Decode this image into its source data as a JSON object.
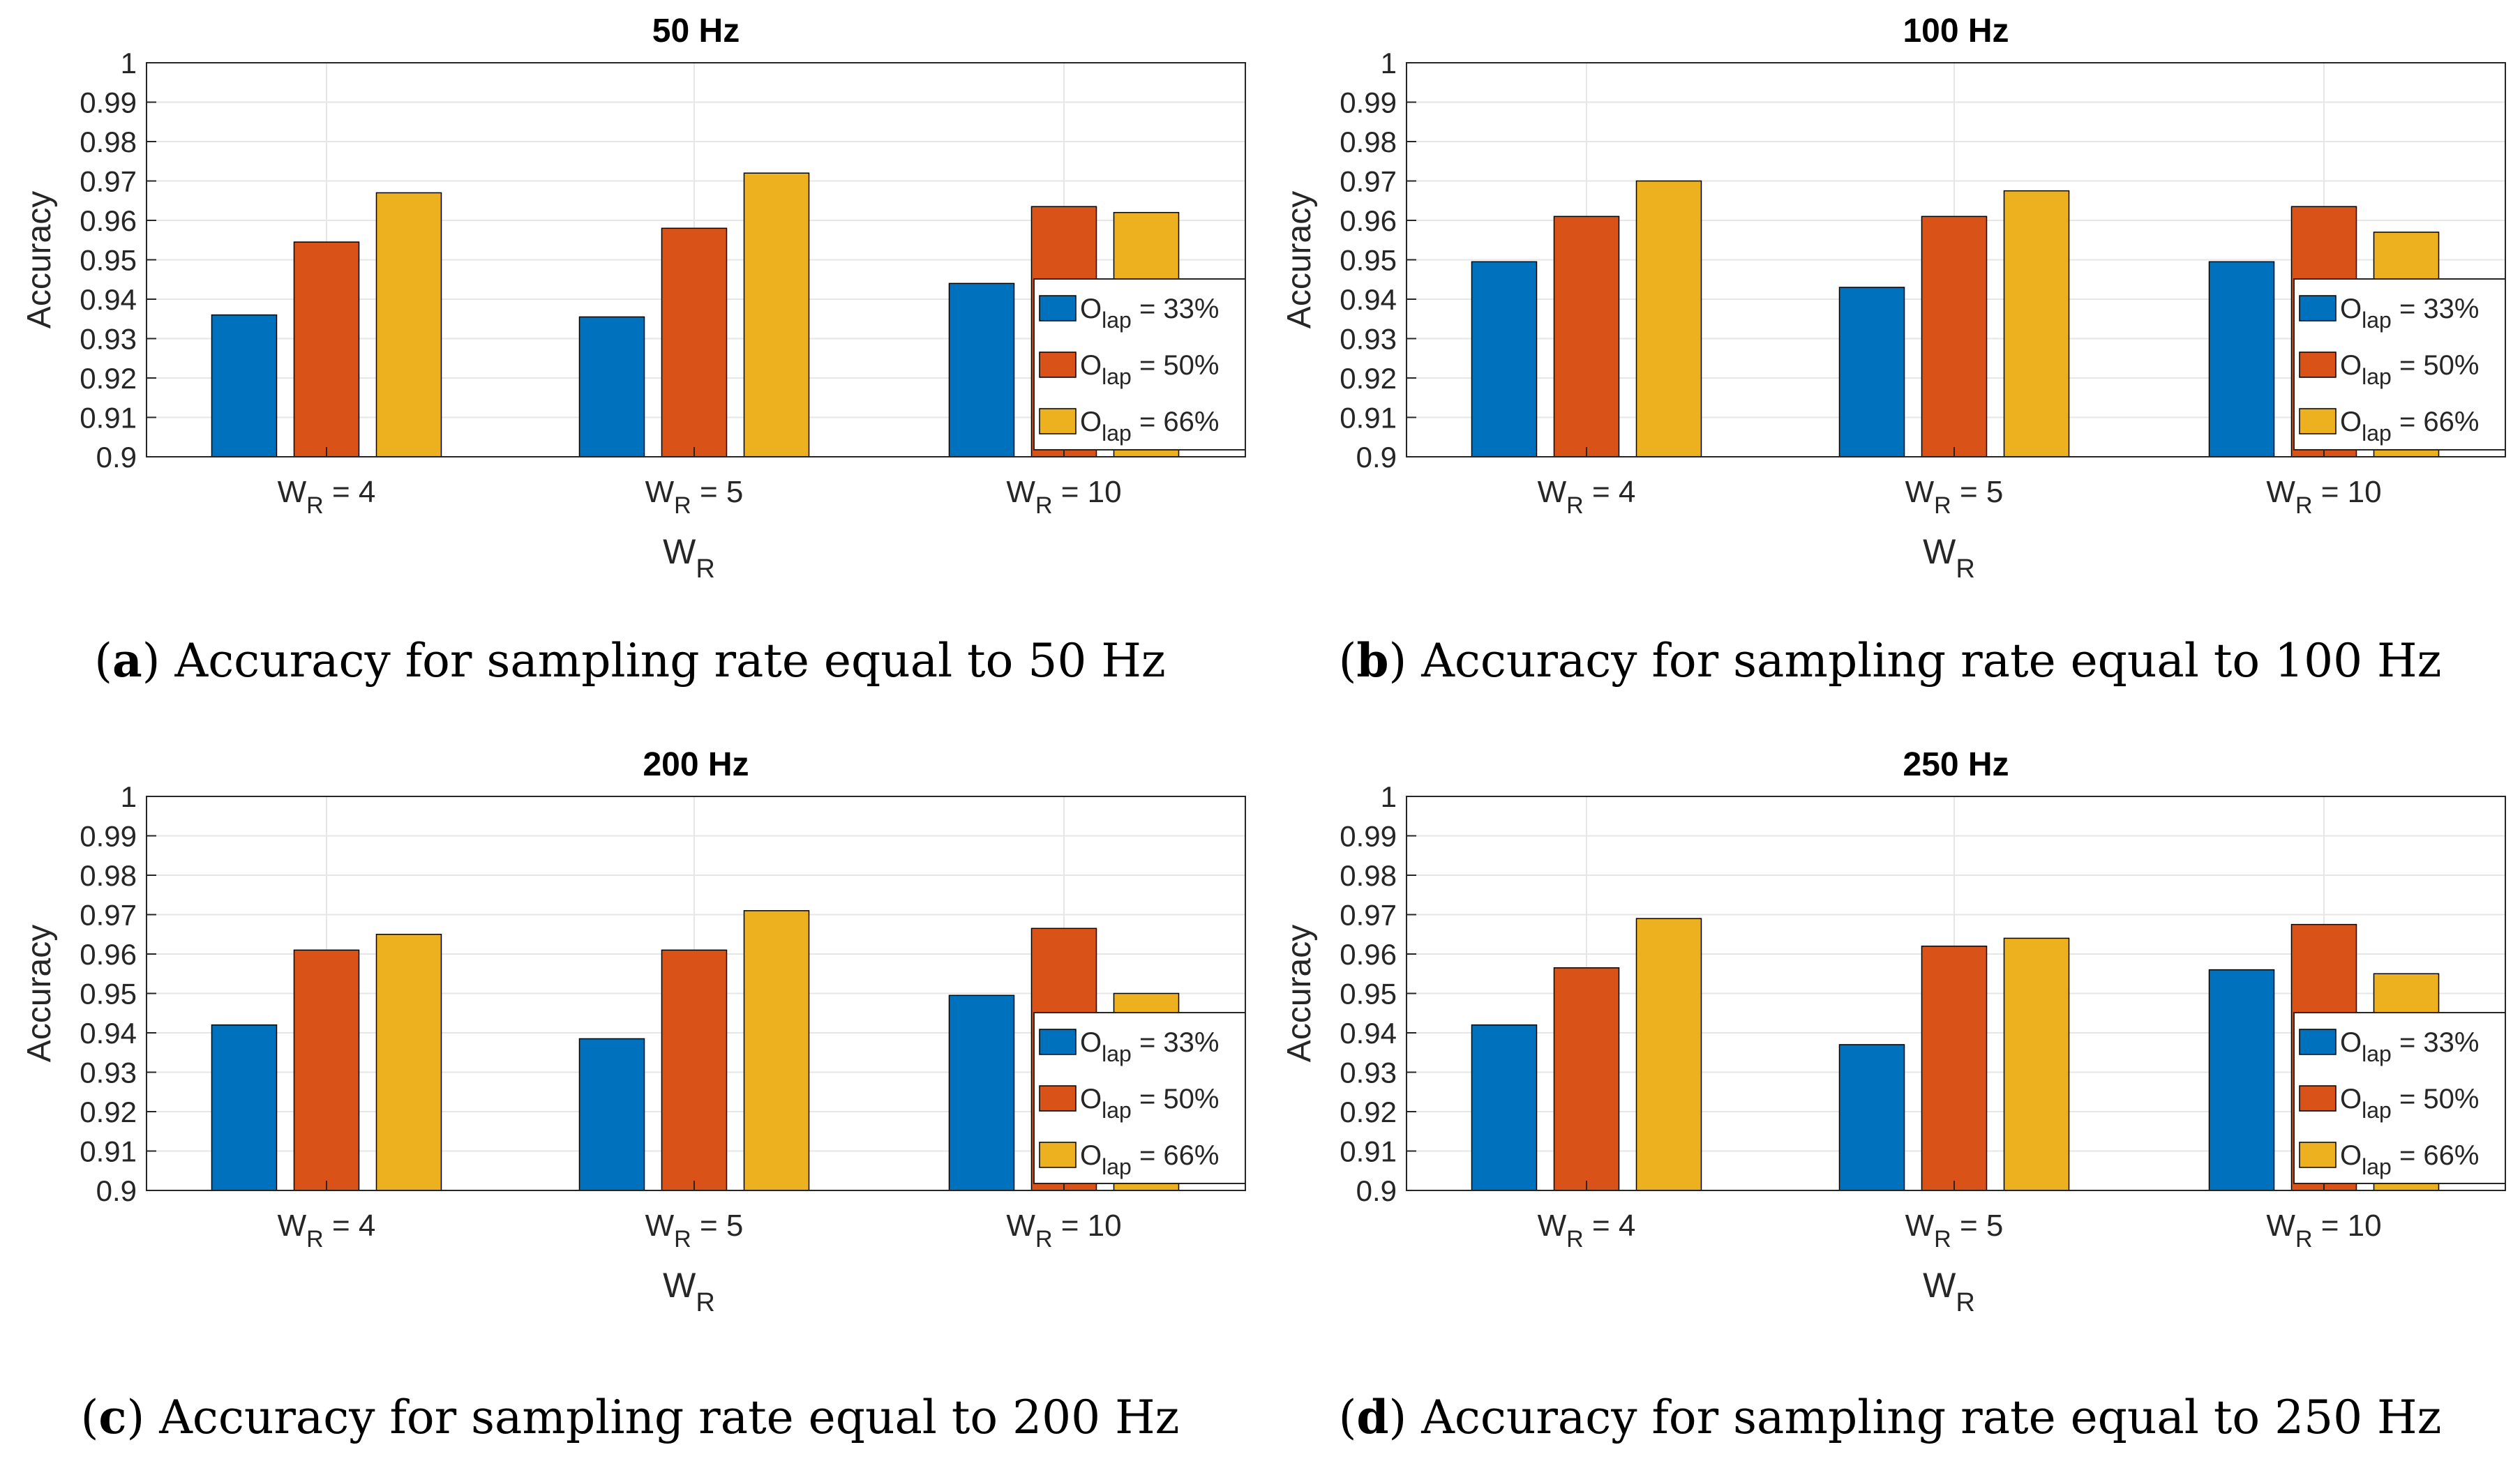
{
  "figure": {
    "y_axis_label": "Accuracy",
    "x_axis_label": "W",
    "x_axis_label_sub": "R",
    "legend_prefix": "O",
    "legend_sub": "lap"
  },
  "colors": {
    "series": [
      "#0072BD",
      "#D95319",
      "#EDB120"
    ]
  },
  "chart_data": [
    {
      "id": "a",
      "type": "bar",
      "title": "50 Hz",
      "caption_letter": "a",
      "caption_text": "Accuracy for sampling rate equal to 50 Hz",
      "xlabel": "W_R",
      "ylabel": "Accuracy",
      "ylim": [
        0.9,
        1.0
      ],
      "yticks": [
        "0.9",
        "0.91",
        "0.92",
        "0.93",
        "0.94",
        "0.95",
        "0.96",
        "0.97",
        "0.98",
        "0.99",
        "1"
      ],
      "categories": [
        "W_R = 4",
        "W_R = 5",
        "W_R = 10"
      ],
      "category_parts": [
        {
          "main": "W",
          "sub": "R",
          "rest": " = 4"
        },
        {
          "main": "W",
          "sub": "R",
          "rest": " = 5"
        },
        {
          "main": "W",
          "sub": "R",
          "rest": " = 10"
        }
      ],
      "legend_location": "east",
      "series": [
        {
          "name": "O_lap = 33%",
          "suffix": " = 33%",
          "values": [
            0.936,
            0.9355,
            0.944
          ]
        },
        {
          "name": "O_lap = 50%",
          "suffix": " = 50%",
          "values": [
            0.9545,
            0.958,
            0.9635
          ]
        },
        {
          "name": "O_lap = 66%",
          "suffix": " = 66%",
          "values": [
            0.967,
            0.972,
            0.962
          ]
        }
      ]
    },
    {
      "id": "b",
      "type": "bar",
      "title": "100 Hz",
      "caption_letter": "b",
      "caption_text": "Accuracy for sampling rate equal to 100 Hz",
      "xlabel": "W_R",
      "ylabel": "Accuracy",
      "ylim": [
        0.9,
        1.0
      ],
      "yticks": [
        "0.9",
        "0.91",
        "0.92",
        "0.93",
        "0.94",
        "0.95",
        "0.96",
        "0.97",
        "0.98",
        "0.99",
        "1"
      ],
      "categories": [
        "W_R = 4",
        "W_R = 5",
        "W_R = 10"
      ],
      "category_parts": [
        {
          "main": "W",
          "sub": "R",
          "rest": " = 4"
        },
        {
          "main": "W",
          "sub": "R",
          "rest": " = 5"
        },
        {
          "main": "W",
          "sub": "R",
          "rest": " = 10"
        }
      ],
      "legend_location": "east",
      "series": [
        {
          "name": "O_lap = 33%",
          "suffix": " = 33%",
          "values": [
            0.9495,
            0.943,
            0.9495
          ]
        },
        {
          "name": "O_lap = 50%",
          "suffix": " = 50%",
          "values": [
            0.961,
            0.961,
            0.9635
          ]
        },
        {
          "name": "O_lap = 66%",
          "suffix": " = 66%",
          "values": [
            0.97,
            0.9675,
            0.957
          ]
        }
      ]
    },
    {
      "id": "c",
      "type": "bar",
      "title": "200 Hz",
      "caption_letter": "c",
      "caption_text": "Accuracy for sampling rate equal to 200 Hz",
      "xlabel": "W_R",
      "ylabel": "Accuracy",
      "ylim": [
        0.9,
        1.0
      ],
      "yticks": [
        "0.9",
        "0.91",
        "0.92",
        "0.93",
        "0.94",
        "0.95",
        "0.96",
        "0.97",
        "0.98",
        "0.99",
        "1"
      ],
      "categories": [
        "W_R = 4",
        "W_R = 5",
        "W_R = 10"
      ],
      "category_parts": [
        {
          "main": "W",
          "sub": "R",
          "rest": " = 4"
        },
        {
          "main": "W",
          "sub": "R",
          "rest": " = 5"
        },
        {
          "main": "W",
          "sub": "R",
          "rest": " = 10"
        }
      ],
      "legend_location": "east",
      "series": [
        {
          "name": "O_lap = 33%",
          "suffix": " = 33%",
          "values": [
            0.942,
            0.9385,
            0.9495
          ]
        },
        {
          "name": "O_lap = 50%",
          "suffix": " = 50%",
          "values": [
            0.961,
            0.961,
            0.9665
          ]
        },
        {
          "name": "O_lap = 66%",
          "suffix": " = 66%",
          "values": [
            0.965,
            0.971,
            0.95
          ]
        }
      ]
    },
    {
      "id": "d",
      "type": "bar",
      "title": "250 Hz",
      "caption_letter": "d",
      "caption_text": "Accuracy for sampling rate equal to 250 Hz",
      "xlabel": "W_R",
      "ylabel": "Accuracy",
      "ylim": [
        0.9,
        1.0
      ],
      "yticks": [
        "0.9",
        "0.91",
        "0.92",
        "0.93",
        "0.94",
        "0.95",
        "0.96",
        "0.97",
        "0.98",
        "0.99",
        "1"
      ],
      "categories": [
        "W_R = 4",
        "W_R = 5",
        "W_R = 10"
      ],
      "category_parts": [
        {
          "main": "W",
          "sub": "R",
          "rest": " = 4"
        },
        {
          "main": "W",
          "sub": "R",
          "rest": " = 5"
        },
        {
          "main": "W",
          "sub": "R",
          "rest": " = 10"
        }
      ],
      "legend_location": "east",
      "series": [
        {
          "name": "O_lap = 33%",
          "suffix": " = 33%",
          "values": [
            0.942,
            0.937,
            0.956
          ]
        },
        {
          "name": "O_lap = 50%",
          "suffix": " = 50%",
          "values": [
            0.9565,
            0.962,
            0.9675
          ]
        },
        {
          "name": "O_lap = 66%",
          "suffix": " = 66%",
          "values": [
            0.969,
            0.964,
            0.955
          ]
        }
      ]
    }
  ]
}
